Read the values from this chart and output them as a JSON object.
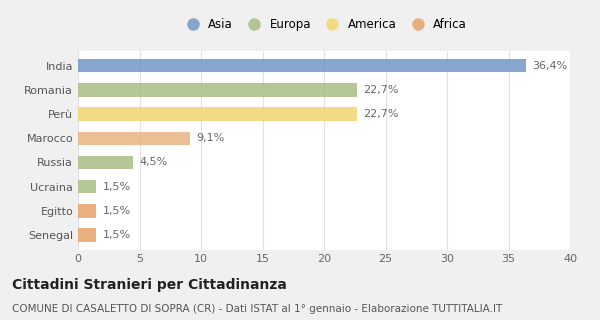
{
  "categories": [
    "India",
    "Romania",
    "Perù",
    "Marocco",
    "Russia",
    "Ucraina",
    "Egitto",
    "Senegal"
  ],
  "values": [
    36.4,
    22.7,
    22.7,
    9.1,
    4.5,
    1.5,
    1.5,
    1.5
  ],
  "labels": [
    "36,4%",
    "22,7%",
    "22,7%",
    "9,1%",
    "4,5%",
    "1,5%",
    "1,5%",
    "1,5%"
  ],
  "colors": [
    "#7b9cc8",
    "#adc08c",
    "#f2d878",
    "#e8b888",
    "#adc08c",
    "#adc08c",
    "#e8a870",
    "#e8a870"
  ],
  "legend": [
    {
      "label": "Asia",
      "color": "#7b9cc8"
    },
    {
      "label": "Europa",
      "color": "#adc08c"
    },
    {
      "label": "America",
      "color": "#f2d878"
    },
    {
      "label": "Africa",
      "color": "#e8a870"
    }
  ],
  "xlim": [
    0,
    40
  ],
  "xticks": [
    0,
    5,
    10,
    15,
    20,
    25,
    30,
    35,
    40
  ],
  "title": "Cittadini Stranieri per Cittadinanza",
  "subtitle": "COMUNE DI CASALETTO DI SOPRA (CR) - Dati ISTAT al 1° gennaio - Elaborazione TUTTITALIA.IT",
  "fig_background": "#f0f0f0",
  "plot_background": "#ffffff",
  "grid_color": "#e0e0e0",
  "bar_height": 0.55,
  "title_fontsize": 10,
  "subtitle_fontsize": 7.5,
  "label_fontsize": 8,
  "tick_fontsize": 8,
  "legend_fontsize": 8.5
}
